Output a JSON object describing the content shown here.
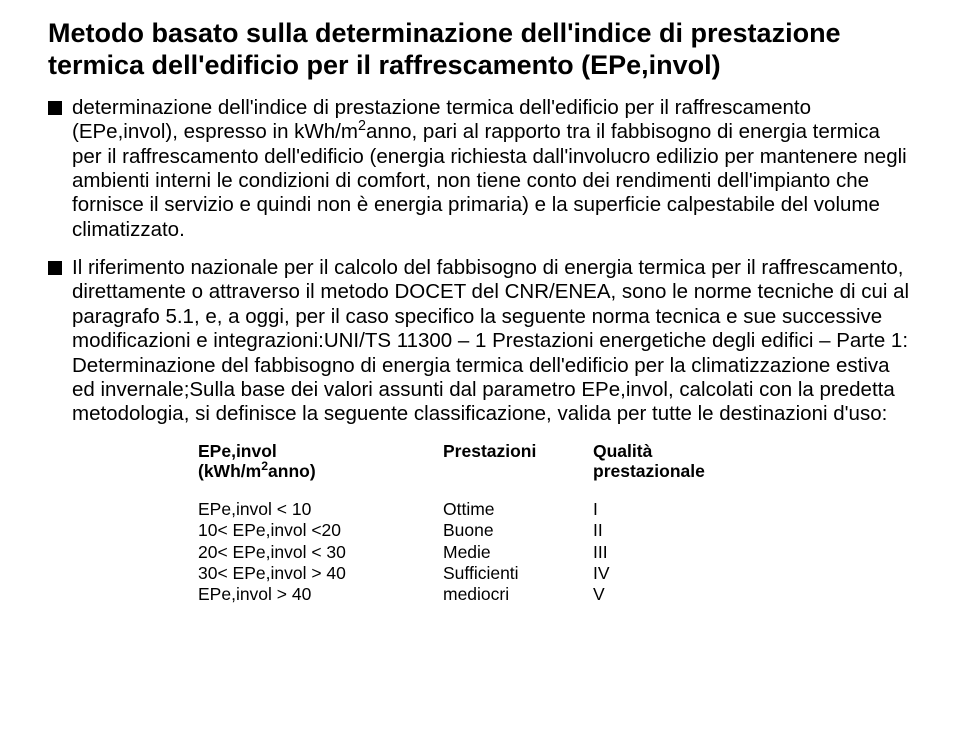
{
  "title": "Metodo basato sulla determinazione dell'indice di prestazione termica dell'edificio per il raffrescamento (EPe,invol)",
  "bullets": [
    {
      "pre": "determinazione dell'indice di prestazione termica dell'edificio per il raffrescamento (EPe,invol), espresso in kWh/m",
      "sup": "2",
      "post": "anno, pari al rapporto tra il fabbisogno di energia termica per il raffrescamento dell'edificio (energia richiesta dall'involucro edilizio per mantenere negli ambienti interni le condizioni di comfort, non tiene conto dei rendimenti dell'impianto che fornisce il servizio e quindi non è energia primaria) e la superficie calpestabile del volume climatizzato."
    },
    {
      "pre": "Il riferimento nazionale per il calcolo del fabbisogno di energia termica per il raffrescamento, direttamente o attraverso il metodo DOCET del CNR/ENEA, sono le norme tecniche di cui al paragrafo 5.1, e, a oggi, per il caso specifico la seguente norma tecnica e sue successive modificazioni e integrazioni:UNI/TS 11300 – 1 Prestazioni energetiche degli edifici – Parte 1: Determinazione del fabbisogno di energia termica dell'edificio per la climatizzazione estiva ed invernale;Sulla base dei valori assunti dal parametro EPe,invol, calcolati con la predetta metodologia, si definisce la seguente classificazione, valida per tutte le destinazioni d'uso:",
      "sup": "",
      "post": ""
    }
  ],
  "table": {
    "headers": {
      "col1_line1": "EPe,invol",
      "col1_line2_pre": "(kWh/m",
      "col1_line2_sup": "2",
      "col1_line2_post": "anno)",
      "col2": "Prestazioni",
      "col3_line1": "Qualità",
      "col3_line2": "prestazionale"
    },
    "rows": [
      {
        "range": "EPe,invol < 10",
        "prest": "Ottime",
        "qual": "I"
      },
      {
        "range": "10< EPe,invol <20",
        "prest": "Buone",
        "qual": "II"
      },
      {
        "range": "20< EPe,invol < 30",
        "prest": "Medie",
        "qual": "III"
      },
      {
        "range": "30< EPe,invol > 40",
        "prest": "Sufficienti",
        "qual": "IV"
      },
      {
        "range": "EPe,invol > 40",
        "prest": "mediocri",
        "qual": "V"
      }
    ]
  }
}
